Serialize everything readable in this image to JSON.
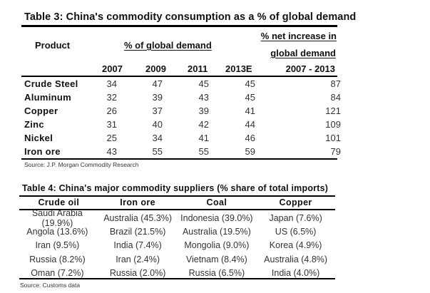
{
  "table3": {
    "title": "Table 3: China's commodity consumption as a % of global demand",
    "headers": {
      "product": "Product",
      "pct_global": "% of global demand",
      "net_line1": "% net increase in",
      "net_line2": "global demand",
      "years": [
        "2007",
        "2009",
        "2011",
        "2013E"
      ],
      "net_period": "2007 - 2013"
    },
    "rows": [
      {
        "product": "Crude Steel",
        "y2007": "34",
        "y2009": "47",
        "y2011": "45",
        "y2013E": "45",
        "net": "87"
      },
      {
        "product": "Aluminum",
        "y2007": "32",
        "y2009": "39",
        "y2011": "43",
        "y2013E": "45",
        "net": "84"
      },
      {
        "product": "Copper",
        "y2007": "26",
        "y2009": "37",
        "y2011": "39",
        "y2013E": "41",
        "net": "121"
      },
      {
        "product": "Zinc",
        "y2007": "31",
        "y2009": "40",
        "y2011": "42",
        "y2013E": "44",
        "net": "109"
      },
      {
        "product": "Nickel",
        "y2007": "25",
        "y2009": "34",
        "y2011": "41",
        "y2013E": "46",
        "net": "101"
      },
      {
        "product": "Iron ore",
        "y2007": "43",
        "y2009": "55",
        "y2011": "55",
        "y2013E": "59",
        "net": "79"
      }
    ],
    "source": "Source: J.P. Morgan Commodity Research"
  },
  "table4": {
    "title": "Table 4: China's major commodity suppliers (% share of total imports)",
    "columns": [
      "Crude oil",
      "Iron ore",
      "Coal",
      "Copper"
    ],
    "rows": [
      [
        "Saudi Arabia (19.9%)",
        "Australia (45.3%)",
        "Indonesia (39.0%)",
        "Japan (7.6%)"
      ],
      [
        "Angola (13.6%)",
        "Brazil (21.5%)",
        "Australia (19.5%)",
        "US (6.5%)"
      ],
      [
        "Iran (9.5%)",
        "India (7.4%)",
        "Mongolia (9.0%)",
        "Korea (4.9%)"
      ],
      [
        "Russia (8.2%)",
        "Iran (2.4%)",
        "Vietnam (8.4%)",
        "Australia (4.8%)"
      ],
      [
        "Oman (7.2%)",
        "Russia (2.0%)",
        "Russia (6.5%)",
        "India (4.0%)"
      ]
    ],
    "source": "Source: Customs data"
  }
}
